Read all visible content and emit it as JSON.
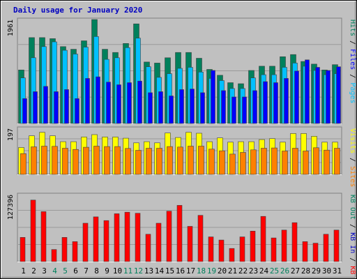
{
  "colors": {
    "background": "#C0C0C0",
    "hits": "#00805C",
    "files": "#00C0FF",
    "pages": "#0000FF",
    "visits": "#FFFF00",
    "sites": "#FF8000",
    "kbin": "#FF0000",
    "title": "#0000C0",
    "weekday_label": "#000000",
    "weekend_label": "#00805C"
  },
  "chart_data": {
    "type": "bar",
    "title": "Daily usage for January 2020",
    "categories": [
      "1",
      "2",
      "3",
      "4",
      "5",
      "6",
      "7",
      "8",
      "9",
      "10",
      "11",
      "12",
      "13",
      "14",
      "15",
      "16",
      "17",
      "18",
      "19",
      "20",
      "21",
      "22",
      "23",
      "24",
      "25",
      "26",
      "27",
      "28",
      "29",
      "30",
      "31"
    ],
    "weekend_days": [
      "4",
      "5",
      "11",
      "12",
      "18",
      "19",
      "25",
      "26"
    ],
    "panels": [
      {
        "name": "requests",
        "ymax_label": "1961",
        "ymax": 1961,
        "legend": [
          {
            "text": "Pages",
            "color": "#00C0FF"
          },
          {
            "text": " / ",
            "color": "#000000"
          },
          {
            "text": "Files",
            "color": "#0000FF"
          },
          {
            "text": " / ",
            "color": "#000000"
          },
          {
            "text": "Hits",
            "color": "#00805C"
          }
        ],
        "series": [
          {
            "name": "Hits",
            "values": [
              1010,
              1620,
              1620,
              1600,
              1450,
              1400,
              1560,
              1961,
              1400,
              1340,
              1510,
              1880,
              1160,
              1140,
              1240,
              1340,
              1340,
              1230,
              1020,
              910,
              770,
              750,
              1000,
              1080,
              1080,
              1260,
              1300,
              1170,
              1120,
              1010,
              1110
            ]
          },
          {
            "name": "Files",
            "values": [
              860,
              1240,
              1450,
              1540,
              1380,
              1310,
              1440,
              1640,
              1210,
              1240,
              1430,
              1610,
              1070,
              870,
              940,
              1040,
              1060,
              970,
              850,
              810,
              660,
              660,
              860,
              920,
              920,
              1060,
              1140,
              1080,
              1000,
              920,
              940
            ]
          },
          {
            "name": "Pages",
            "values": [
              470,
              600,
              700,
              600,
              640,
              470,
              850,
              880,
              780,
              730,
              770,
              800,
              580,
              600,
              520,
              640,
              650,
              580,
              1000,
              620,
              500,
              500,
              620,
              790,
              770,
              850,
              990,
              1200,
              1060,
              1000,
              1070
            ]
          }
        ]
      },
      {
        "name": "visitors",
        "ymax_label": "197",
        "ymax": 197,
        "legend": [
          {
            "text": "Sites",
            "color": "#FF8000"
          },
          {
            "text": " / ",
            "color": "#000000"
          },
          {
            "text": "Visits",
            "color": "#FFFF00"
          }
        ],
        "series": [
          {
            "name": "Visits",
            "values": [
              115,
              165,
              180,
              165,
              140,
              140,
              160,
              170,
              160,
              160,
              155,
              135,
              140,
              135,
              177,
              158,
              180,
              176,
              140,
              156,
              138,
              140,
              140,
              149,
              153,
              138,
              175,
              175,
              163,
              138,
              138
            ]
          },
          {
            "name": "Sites",
            "values": [
              89,
              118,
              121,
              120,
              112,
              107,
              116,
              121,
              119,
              119,
              111,
              103,
              112,
              112,
              119,
              117,
              121,
              121,
              108,
              101,
              87,
              94,
              105,
              112,
              113,
              100,
              112,
              100,
              114,
              104,
              112
            ]
          }
        ]
      },
      {
        "name": "traffic",
        "ymax_label": "127396",
        "ymax": 127396,
        "legend": [
          {
            "text": "KB F",
            "color": "#FF0000"
          },
          {
            "text": " / ",
            "color": "#000000"
          },
          {
            "text": "KB In",
            "color": "#0000C0"
          },
          {
            "text": " / ",
            "color": "#000000"
          },
          {
            "text": "KB Out",
            "color": "#00805C"
          }
        ],
        "series": [
          {
            "name": "KB F",
            "values": [
              46000,
              117000,
              95000,
              23000,
              46000,
              38000,
              73000,
              85000,
              78000,
              91000,
              94000,
              92000,
              52000,
              73000,
              96000,
              107000,
              67000,
              88000,
              47000,
              41000,
              25000,
              47000,
              58000,
              86000,
              45000,
              60000,
              74000,
              38000,
              35000,
              52000,
              60000
            ]
          }
        ]
      }
    ]
  }
}
